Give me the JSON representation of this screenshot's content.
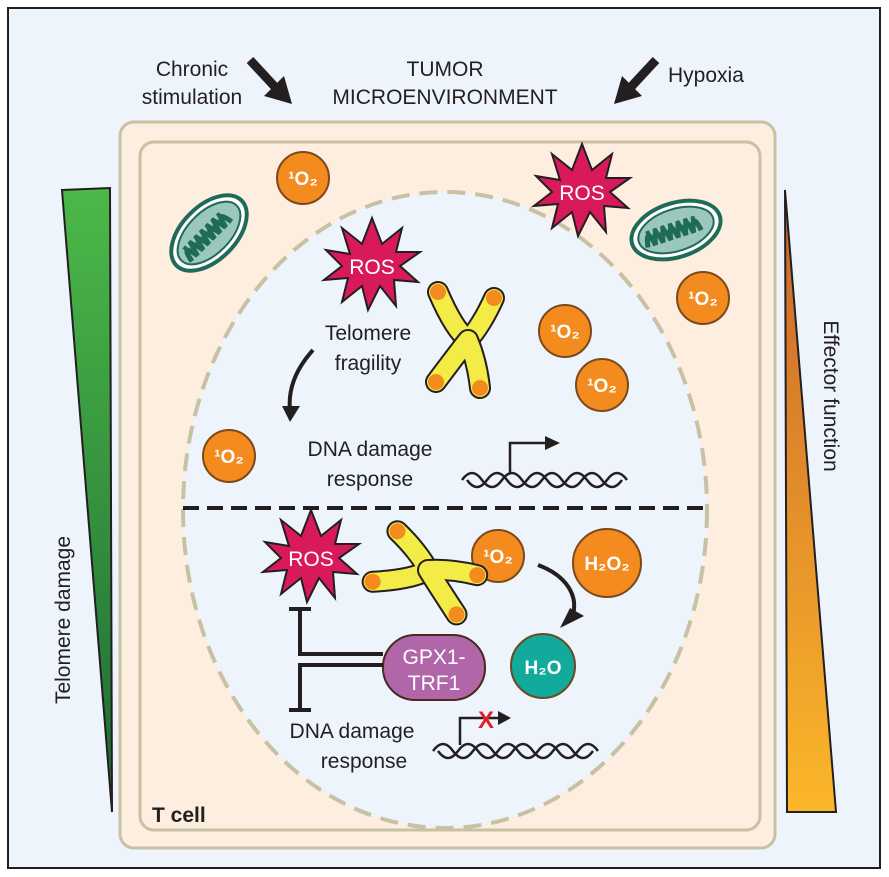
{
  "header": {
    "chronic": "Chronic",
    "stimulation": "stimulation",
    "tumor": "TUMOR",
    "microenvironment": "MICROENVIRONMENT",
    "hypoxia": "Hypoxia"
  },
  "side": {
    "left": "Telomere damage",
    "right": "Effector function"
  },
  "cell_label": "T cell",
  "molecules": {
    "singlet_oxygen": "¹O₂",
    "ros": "ROS",
    "h2o2": "H₂O₂",
    "h2o": "H₂O"
  },
  "top_half": {
    "telomere": "Telomere",
    "fragility": "fragility",
    "dna_damage": "DNA damage",
    "response": "response"
  },
  "bottom_half": {
    "gpx1": "GPX1-",
    "trf1": "TRF1",
    "dna_damage": "DNA damage",
    "response": "response",
    "block_mark": "X"
  },
  "colors": {
    "background": "#eef4fb",
    "cytoplasm": "#fdeee0",
    "orange": "#f38b1f",
    "ros": "#d91a5a",
    "teal": "#11aa9c",
    "purple": "#b066a8",
    "yellow": "#f3ec47",
    "mito": "#1f6b57",
    "green_top": "#4cb848",
    "green_bottom": "#1d6b34",
    "gold_top": "#d9782b",
    "gold_bottom": "#fbb72a"
  }
}
